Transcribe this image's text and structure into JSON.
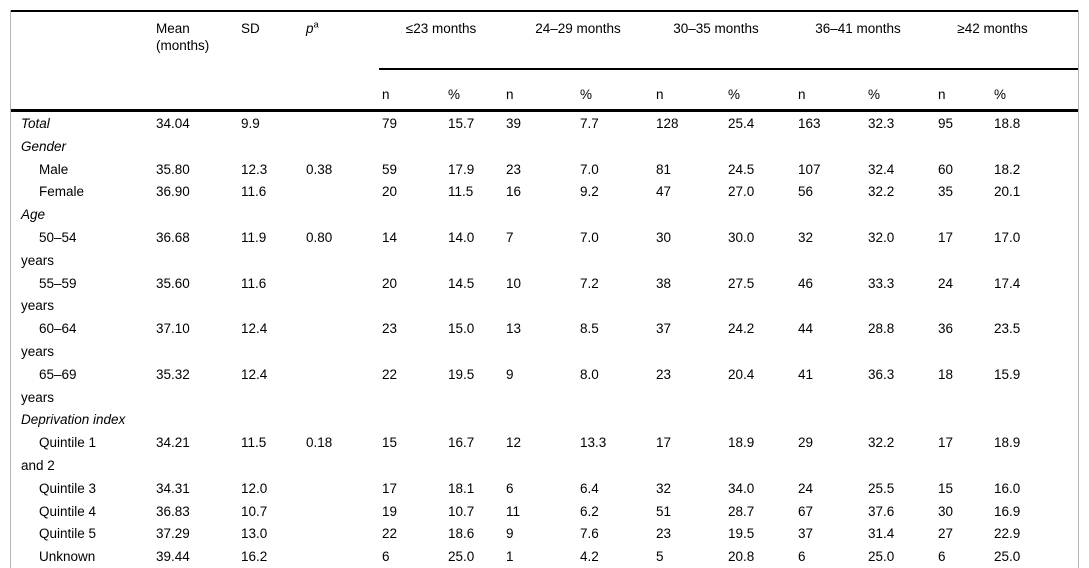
{
  "table": {
    "headers": {
      "mean": "Mean\n(months)",
      "sd": "SD",
      "p_label": "p",
      "p_sup": "a",
      "groups": [
        "≤23 months",
        "24–29 months",
        "30–35 months",
        "36–41 months",
        "≥42 months"
      ],
      "n_label": "n",
      "pct_label": "%"
    },
    "rows": [
      {
        "label": "Total",
        "italic": true,
        "indent": false,
        "mean": "34.04",
        "sd": "9.9",
        "p": "",
        "cells": [
          "79",
          "15.7",
          "39",
          "7.7",
          "128",
          "25.4",
          "163",
          "32.3",
          "95",
          "18.8"
        ]
      },
      {
        "label": "Gender",
        "italic": true,
        "indent": false,
        "mean": "",
        "sd": "",
        "p": "",
        "cells": [
          "",
          "",
          "",
          "",
          "",
          "",
          "",
          "",
          "",
          ""
        ]
      },
      {
        "label": "Male",
        "italic": false,
        "indent": true,
        "mean": "35.80",
        "sd": "12.3",
        "p": "0.38",
        "cells": [
          "59",
          "17.9",
          "23",
          "7.0",
          "81",
          "24.5",
          "107",
          "32.4",
          "60",
          "18.2"
        ]
      },
      {
        "label": "Female",
        "italic": false,
        "indent": true,
        "mean": "36.90",
        "sd": "11.6",
        "p": "",
        "cells": [
          "20",
          "11.5",
          "16",
          "9.2",
          "47",
          "27.0",
          "56",
          "32.2",
          "35",
          "20.1"
        ]
      },
      {
        "label": "Age",
        "italic": true,
        "indent": false,
        "mean": "",
        "sd": "",
        "p": "",
        "cells": [
          "",
          "",
          "",
          "",
          "",
          "",
          "",
          "",
          "",
          ""
        ]
      },
      {
        "label": "50–54\nyears",
        "italic": false,
        "indent": true,
        "mean": "36.68",
        "sd": "11.9",
        "p": "0.80",
        "cells": [
          "14",
          "14.0",
          "7",
          "7.0",
          "30",
          "30.0",
          "32",
          "32.0",
          "17",
          "17.0"
        ]
      },
      {
        "label": "55–59\nyears",
        "italic": false,
        "indent": true,
        "mean": "35.60",
        "sd": "11.6",
        "p": "",
        "cells": [
          "20",
          "14.5",
          "10",
          "7.2",
          "38",
          "27.5",
          "46",
          "33.3",
          "24",
          "17.4"
        ]
      },
      {
        "label": "60–64\nyears",
        "italic": false,
        "indent": true,
        "mean": "37.10",
        "sd": "12.4",
        "p": "",
        "cells": [
          "23",
          "15.0",
          "13",
          "8.5",
          "37",
          "24.2",
          "44",
          "28.8",
          "36",
          "23.5"
        ]
      },
      {
        "label": "65–69\nyears",
        "italic": false,
        "indent": true,
        "mean": "35.32",
        "sd": "12.4",
        "p": "",
        "cells": [
          "22",
          "19.5",
          "9",
          "8.0",
          "23",
          "20.4",
          "41",
          "36.3",
          "18",
          "15.9"
        ]
      },
      {
        "label": "Deprivation index",
        "italic": true,
        "indent": false,
        "mean": "",
        "sd": "",
        "p": "",
        "cells": [
          "",
          "",
          "",
          "",
          "",
          "",
          "",
          "",
          "",
          ""
        ]
      },
      {
        "label": "Quintile 1\nand 2",
        "italic": false,
        "indent": true,
        "mean": "34.21",
        "sd": "11.5",
        "p": "0.18",
        "cells": [
          "15",
          "16.7",
          "12",
          "13.3",
          "17",
          "18.9",
          "29",
          "32.2",
          "17",
          "18.9"
        ]
      },
      {
        "label": "Quintile 3",
        "italic": false,
        "indent": true,
        "mean": "34.31",
        "sd": "12.0",
        "p": "",
        "cells": [
          "17",
          "18.1",
          "6",
          "6.4",
          "32",
          "34.0",
          "24",
          "25.5",
          "15",
          "16.0"
        ]
      },
      {
        "label": "Quintile 4",
        "italic": false,
        "indent": true,
        "mean": "36.83",
        "sd": "10.7",
        "p": "",
        "cells": [
          "19",
          "10.7",
          "11",
          "6.2",
          "51",
          "28.7",
          "67",
          "37.6",
          "30",
          "16.9"
        ]
      },
      {
        "label": "Quintile 5",
        "italic": false,
        "indent": true,
        "mean": "37.29",
        "sd": "13.0",
        "p": "",
        "cells": [
          "22",
          "18.6",
          "9",
          "7.6",
          "23",
          "19.5",
          "37",
          "31.4",
          "27",
          "22.9"
        ]
      },
      {
        "label": "Unknown",
        "italic": false,
        "indent": true,
        "mean": "39.44",
        "sd": "16.2",
        "p": "",
        "cells": [
          "6",
          "25.0",
          "1",
          "4.2",
          "5",
          "20.8",
          "6",
          "25.0",
          "6",
          "25.0"
        ]
      }
    ]
  },
  "colors": {
    "text": "#000000",
    "rule": "#000000",
    "frame_border": "#b5b5b5",
    "background": "#ffffff"
  }
}
